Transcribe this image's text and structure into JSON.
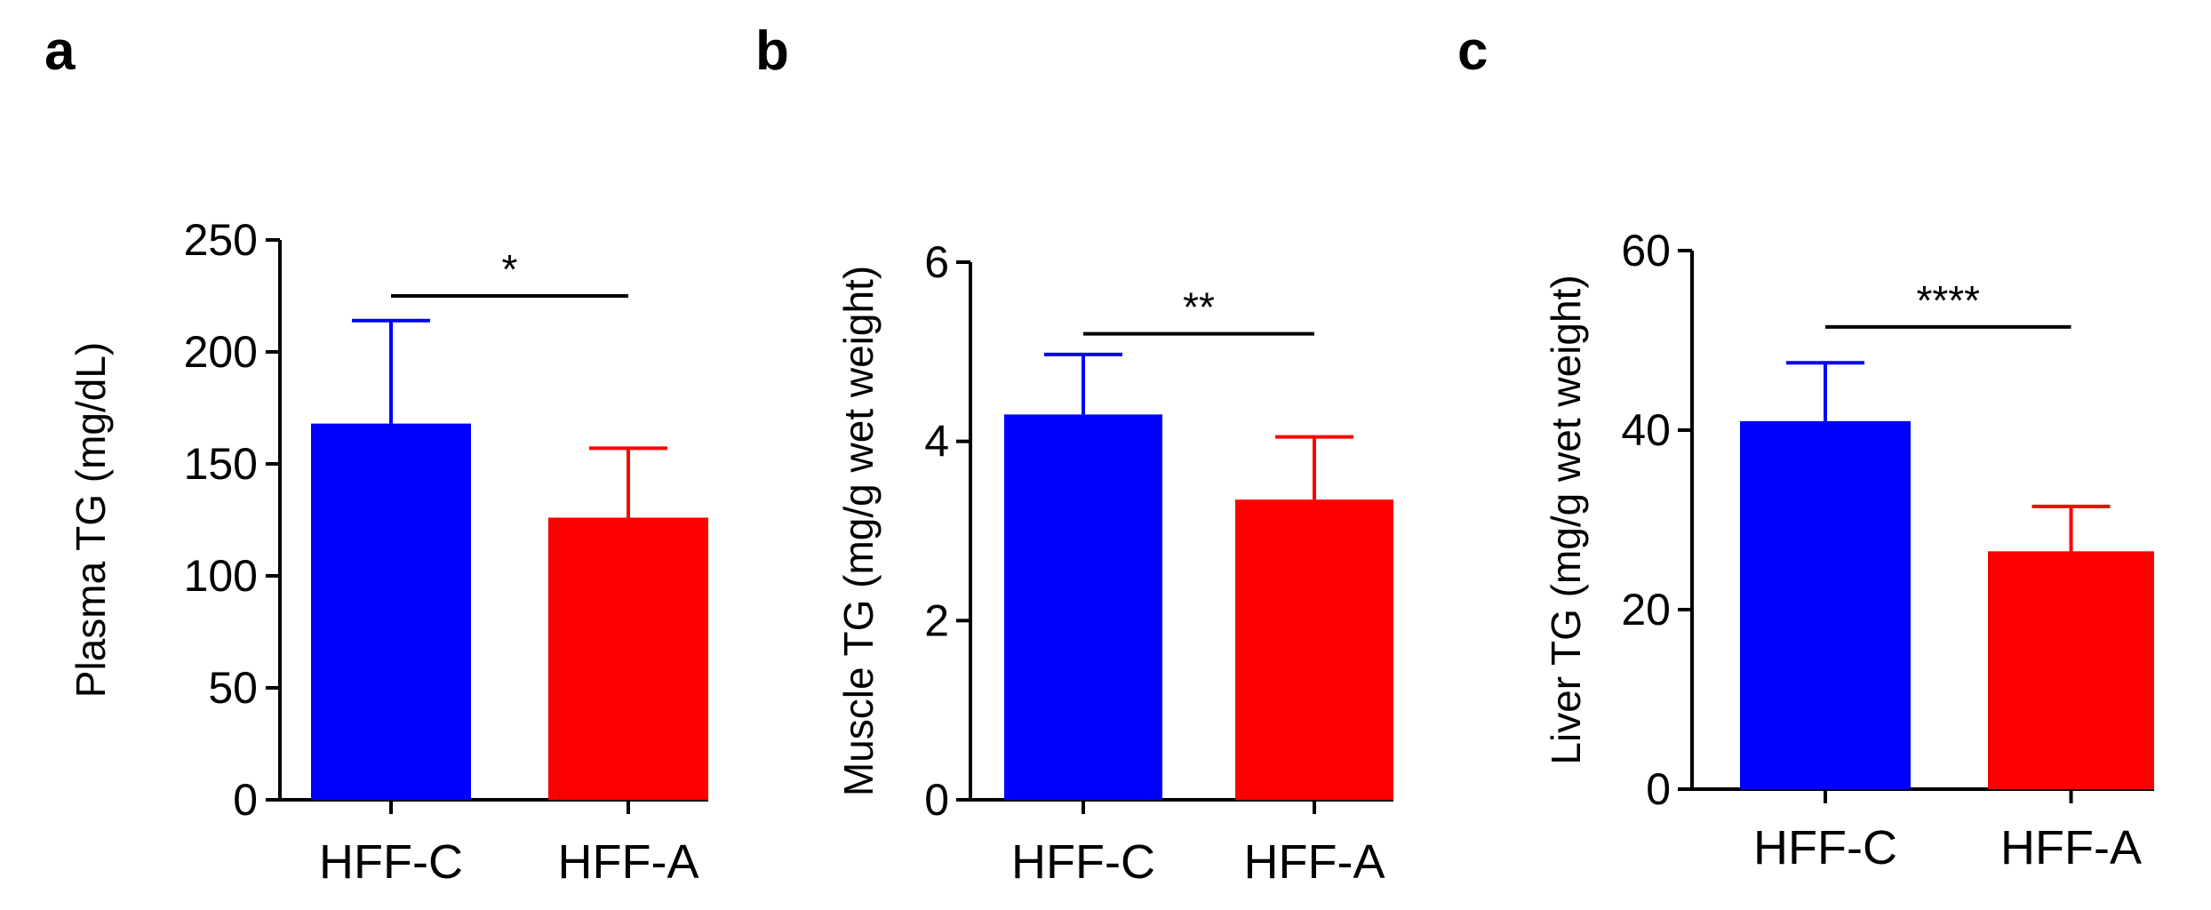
{
  "figure_title": "",
  "colors": {
    "HFF-C": "#0000ff",
    "HFF-A": "#ff0000",
    "axis": "#000000"
  },
  "chart_data": [
    {
      "type": "bar",
      "panel": "a",
      "title": "",
      "xlabel": "",
      "ylabel": "Plasma TG (mg/dL)",
      "categories": [
        "HFF-C",
        "HFF-A"
      ],
      "values": [
        168,
        126
      ],
      "errors": [
        46,
        31
      ],
      "ylim": [
        0,
        250
      ],
      "yticks": [
        0,
        50,
        100,
        150,
        200,
        250
      ],
      "significance": {
        "label": "*",
        "y": 225
      }
    },
    {
      "type": "bar",
      "panel": "b",
      "title": "",
      "xlabel": "",
      "ylabel": "Muscle TG (mg/g wet weight)",
      "categories": [
        "HFF-C",
        "HFF-A"
      ],
      "values": [
        4.3,
        3.35
      ],
      "errors": [
        0.67,
        0.7
      ],
      "ylim": [
        0,
        6
      ],
      "yticks": [
        0,
        2,
        4,
        6
      ],
      "significance": {
        "label": "**",
        "y": 5.2
      }
    },
    {
      "type": "bar",
      "panel": "c",
      "title": "",
      "xlabel": "",
      "ylabel": "Liver TG (mg/g wet weight)",
      "categories": [
        "HFF-C",
        "HFF-A"
      ],
      "values": [
        41,
        26.5
      ],
      "errors": [
        6.5,
        5
      ],
      "ylim": [
        0,
        60
      ],
      "yticks": [
        0,
        20,
        40,
        60
      ],
      "significance": {
        "label": "****",
        "y": 51.5
      }
    }
  ]
}
